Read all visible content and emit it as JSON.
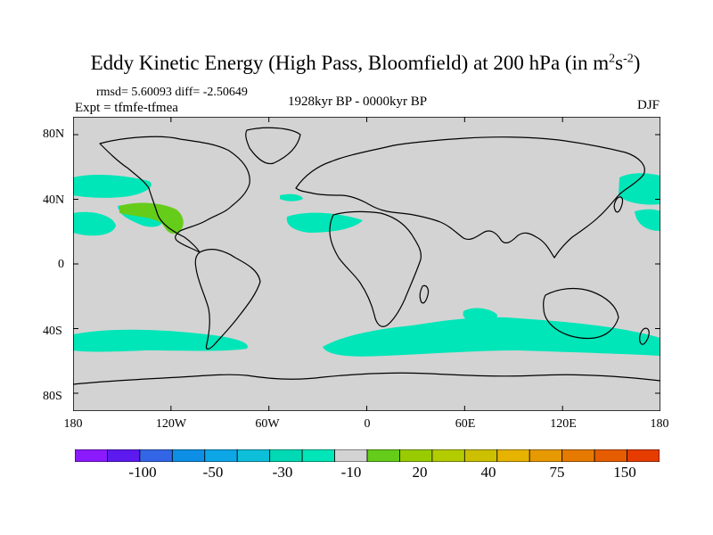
{
  "title": {
    "main": "Eddy Kinetic Energy (High Pass, Bloomfield) at 200 hPa (in m",
    "sup1": "2",
    "mid": "s",
    "sup2": "-2",
    "end": ")"
  },
  "stats": "rmsd= 5.60093 diff= -2.50649",
  "expt": "Expt = tfmfe-tfmea",
  "period": "1928kyr BP - 0000kyr BP",
  "season": "DJF",
  "map": {
    "ocean_color": "#d3d3d3",
    "coast_color": "#000000",
    "y_ticks": [
      "80N",
      "40N",
      "0",
      "40S",
      "80S"
    ],
    "x_ticks": [
      "180",
      "120W",
      "60W",
      "0",
      "60E",
      "120E",
      "180"
    ],
    "anomaly_regions": [
      {
        "name": "north-pacific-west",
        "level": "-10",
        "color": "#00e6b8"
      },
      {
        "name": "north-pacific-east",
        "level": "-10",
        "color": "#00e6b8"
      },
      {
        "name": "north-pacific-central",
        "level": "-10",
        "color": "#00e6b8"
      },
      {
        "name": "north-atlantic",
        "level": "-10",
        "color": "#00e6b8"
      },
      {
        "name": "north-atlantic-small",
        "level": "-10",
        "color": "#00e6b8"
      },
      {
        "name": "northwest-pacific",
        "level": "-10",
        "color": "#00e6b8"
      },
      {
        "name": "pacific-far-west",
        "level": "-10",
        "color": "#00e6b8"
      },
      {
        "name": "eastern-pacific-positive",
        "level": "20",
        "color": "#66cc1a"
      },
      {
        "name": "southern-ocean-pacific",
        "level": "-10",
        "color": "#00e6b8"
      },
      {
        "name": "southern-ocean-indian",
        "level": "-10",
        "color": "#00e6b8"
      },
      {
        "name": "south-indian-blob",
        "level": "-10",
        "color": "#00e6b8"
      }
    ]
  },
  "colorbar": {
    "colors": [
      "#8c1aff",
      "#5c1aef",
      "#3366e6",
      "#0d8fe6",
      "#0da6e6",
      "#0dbfd9",
      "#00d9b3",
      "#00e6b8",
      "#d3d3d3",
      "#66cc1a",
      "#99cc00",
      "#b3cc00",
      "#ccc000",
      "#e6b300",
      "#e69900",
      "#e67a00",
      "#e65c00",
      "#e63c00"
    ],
    "labels": [
      "-100",
      "-50",
      "-30",
      "-10",
      "20",
      "40",
      "75",
      "150"
    ]
  }
}
